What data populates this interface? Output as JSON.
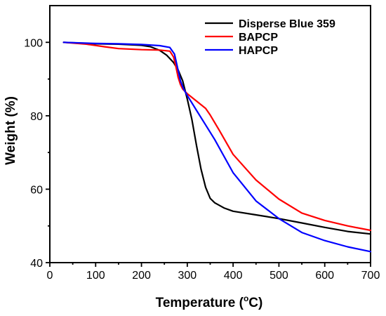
{
  "chart_data": {
    "type": "line",
    "xlabel": "Temperature (",
    "xlabel_unit_sup": "o",
    "xlabel_unit": "C)",
    "ylabel": "Weight (%)",
    "xlim": [
      0,
      700
    ],
    "ylim": [
      40,
      110
    ],
    "xticks": [
      "0",
      "100",
      "200",
      "300",
      "400",
      "500",
      "600",
      "700"
    ],
    "yticks": [
      "40",
      "60",
      "80",
      "100"
    ],
    "grid": false,
    "legend_position": "top-right",
    "series": [
      {
        "name": "Disperse Blue 359",
        "color": "#000000",
        "x": [
          30,
          100,
          150,
          200,
          220,
          240,
          255,
          270,
          280,
          290,
          300,
          310,
          320,
          330,
          340,
          350,
          360,
          380,
          400,
          450,
          500,
          550,
          600,
          650,
          700
        ],
        "y": [
          100,
          99.6,
          99.5,
          99.2,
          98.8,
          97.8,
          96.5,
          94.5,
          92.5,
          89.5,
          84.5,
          79.0,
          72.0,
          65.5,
          60.5,
          57.5,
          56.3,
          54.9,
          54.0,
          53.0,
          52.0,
          50.8,
          49.6,
          48.5,
          47.8
        ]
      },
      {
        "name": "BAPCP",
        "color": "#ff0000",
        "x": [
          30,
          80,
          120,
          150,
          200,
          240,
          262,
          270,
          275,
          280,
          285,
          290,
          300,
          320,
          340,
          350,
          370,
          400,
          450,
          500,
          550,
          600,
          650,
          700
        ],
        "y": [
          100,
          99.5,
          98.8,
          98.3,
          98.0,
          97.9,
          97.6,
          96.0,
          93.5,
          90.5,
          88.5,
          87.3,
          86.0,
          84.0,
          82.0,
          80.2,
          76.0,
          69.5,
          62.5,
          57.3,
          53.5,
          51.5,
          50.0,
          48.8
        ]
      },
      {
        "name": "HAPCP",
        "color": "#0000ff",
        "x": [
          30,
          100,
          150,
          200,
          240,
          262,
          272,
          278,
          285,
          292,
          300,
          320,
          340,
          360,
          400,
          450,
          500,
          550,
          600,
          650,
          700
        ],
        "y": [
          100,
          99.7,
          99.6,
          99.4,
          99.1,
          98.6,
          96.8,
          93.5,
          89.5,
          87.3,
          85.5,
          81.5,
          77.5,
          73.5,
          64.5,
          56.8,
          52.0,
          48.2,
          46.0,
          44.3,
          43.0
        ]
      }
    ]
  }
}
